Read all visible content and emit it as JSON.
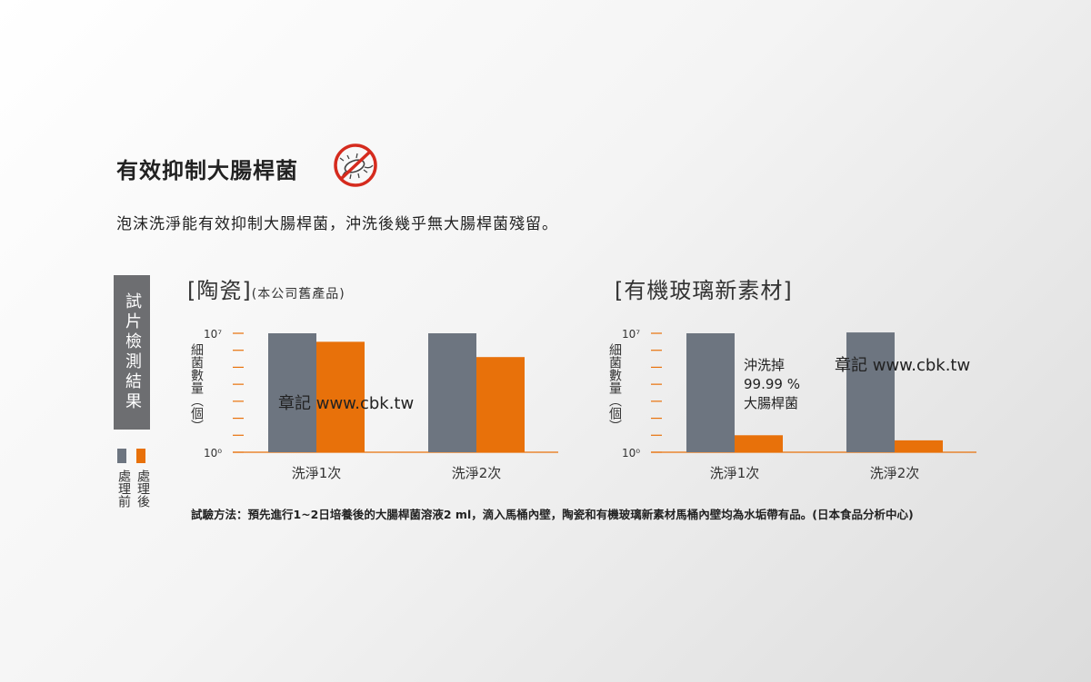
{
  "heading": {
    "title": "有效抑制大腸桿菌",
    "subtitle": "泡沫洗淨能有效抑制大腸桿菌，沖洗後幾乎無大腸桿菌殘留。",
    "no_bacteria_icon": "no-bacteria-icon"
  },
  "sidebar": {
    "label": "試片檢測結果",
    "legend": [
      {
        "label": "處理前",
        "color": "#6d7580"
      },
      {
        "label": "處理後",
        "color": "#e8710a"
      }
    ]
  },
  "watermarks": [
    "章記 www.cbk.tw",
    "章記 www.cbk.tw"
  ],
  "footnote": "試驗方法：預先進行1~2日培養後的大腸桿菌溶液2 ml，滴入馬桶內壁，陶瓷和有機玻璃新素材馬桶內壁均為水垢帶有品。(日本食品分析中心)",
  "colors": {
    "before": "#6d7580",
    "after": "#e8710a",
    "axis": "#e8710a"
  },
  "chart_data": [
    {
      "type": "bar",
      "title": "[陶瓷]",
      "subtitle": "(本公司舊產品)",
      "ylabel": "細菌數量（個）",
      "y_scale": "log",
      "ylim": [
        0,
        7
      ],
      "y_ticks": [
        "10⁰",
        "10⁷"
      ],
      "categories": [
        "洗淨1次",
        "洗淨2次"
      ],
      "series": [
        {
          "name": "處理前",
          "values": [
            7.0,
            7.0
          ]
        },
        {
          "name": "處理後",
          "values": [
            6.5,
            5.6
          ]
        }
      ],
      "annotation": ""
    },
    {
      "type": "bar",
      "title": "[有機玻璃新素材]",
      "subtitle": "",
      "ylabel": "細菌數量（個）",
      "y_scale": "log",
      "ylim": [
        0,
        7
      ],
      "y_ticks": [
        "10⁰",
        "10⁷"
      ],
      "categories": [
        "洗淨1次",
        "洗淨2次"
      ],
      "series": [
        {
          "name": "處理前",
          "values": [
            7.0,
            7.05
          ]
        },
        {
          "name": "處理後",
          "values": [
            1.0,
            0.7
          ]
        }
      ],
      "annotation": "沖洗掉\n99.99 %\n大腸桿菌"
    }
  ]
}
